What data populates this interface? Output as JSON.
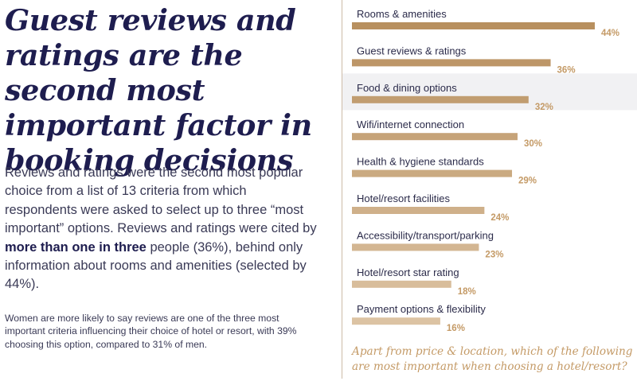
{
  "headline": "Guest reviews and ratings are the second most important factor in booking decisions",
  "body": {
    "before": "Reviews and ratings were the second most popular choice from a list of 13 criteria from which respondents were asked to select up to three “most important” options. Reviews and ratings were cited by ",
    "bold": "more than one in three",
    "after": " people (36%), behind only information about rooms and amenities (selected by 44%)."
  },
  "footnote": "Women are more likely to say reviews are one of the three most important criteria influencing their choice of hotel or resort, with 39% choosing this option, compared to 31% of men.",
  "chart_data": {
    "type": "bar",
    "orientation": "horizontal",
    "title": "",
    "caption": "Apart from price & location, which of the following are most important when choosing a hotel/resort?",
    "categories": [
      "Rooms & amenities",
      "Guest reviews & ratings",
      "Food & dining options",
      "Wifi/internet connection",
      "Health & hygiene standards",
      "Hotel/resort facilities",
      "Accessibility/transport/parking",
      "Hotel/resort star rating",
      "Payment options & flexibility"
    ],
    "values": [
      44,
      36,
      32,
      30,
      29,
      24,
      23,
      18,
      16
    ],
    "value_labels": [
      "44%",
      "36%",
      "32%",
      "30%",
      "29%",
      "24%",
      "23%",
      "18%",
      "16%"
    ],
    "highlight_index": 1,
    "xlim": [
      0,
      44
    ],
    "grid": false,
    "colors": {
      "bar_top": "#b8905f",
      "bar_bottom": "#dcc3a3",
      "label": "#c49a66",
      "text": "#2b2b4a",
      "highlight_bg": "#f1f1f3"
    }
  }
}
